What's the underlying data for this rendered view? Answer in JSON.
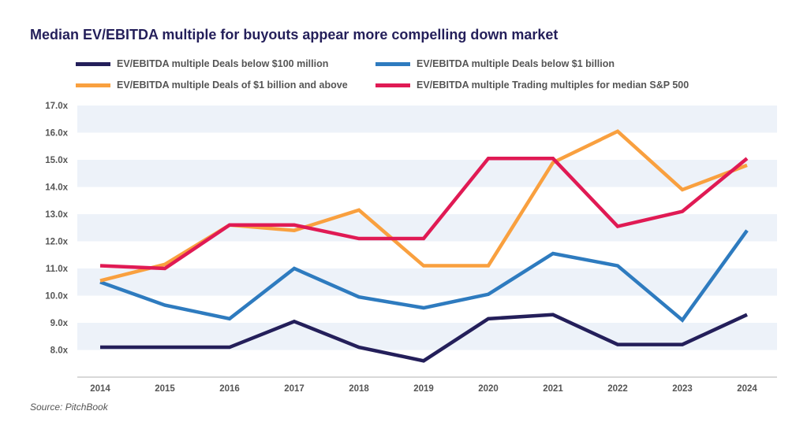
{
  "chart_data": {
    "type": "line",
    "title": "Median EV/EBITDA multiple for buyouts appear more compelling down market",
    "source": "Source: PitchBook",
    "x": [
      "2014",
      "2015",
      "2016",
      "2017",
      "2018",
      "2019",
      "2020",
      "2021",
      "2022",
      "2023",
      "2024"
    ],
    "ylim": [
      7,
      17
    ],
    "yticks": [
      "8.0x",
      "9.0x",
      "10.0x",
      "11.0x",
      "12.0x",
      "13.0x",
      "14.0x",
      "15.0x",
      "16.0x",
      "17.0x"
    ],
    "grid": "alternating horizontal bands",
    "legend": "top",
    "series": [
      {
        "name": "EV/EBITDA multiple Deals below $100 million",
        "color": "#241f5a",
        "values": [
          8.1,
          8.1,
          8.1,
          9.05,
          8.1,
          7.6,
          9.15,
          9.3,
          8.2,
          8.2,
          9.3
        ]
      },
      {
        "name": "EV/EBITDA multiple Deals below $1 billion",
        "color": "#2e7bbf",
        "values": [
          10.5,
          9.65,
          9.15,
          11.0,
          9.95,
          9.55,
          10.05,
          11.55,
          11.1,
          9.1,
          12.4
        ]
      },
      {
        "name": "EV/EBITDA multiple Deals of $1 billion and above",
        "color": "#f9a03f",
        "values": [
          10.55,
          11.15,
          12.6,
          12.4,
          13.15,
          11.1,
          11.1,
          14.9,
          16.05,
          13.9,
          14.8
        ]
      },
      {
        "name": "EV/EBITDA multiple Trading multiples for median S&P 500",
        "color": "#e01a54",
        "values": [
          11.1,
          11.0,
          12.6,
          12.6,
          12.1,
          12.1,
          15.05,
          15.05,
          12.55,
          13.1,
          15.05
        ]
      }
    ]
  }
}
